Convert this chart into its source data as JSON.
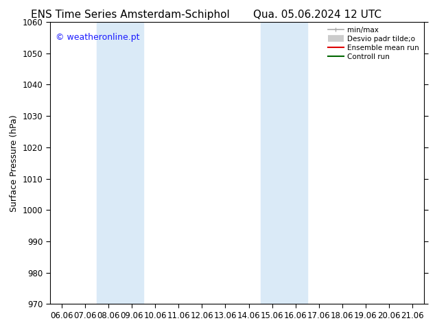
{
  "title_left": "ENS Time Series Amsterdam-Schiphol",
  "title_right": "Qua. 05.06.2024 12 UTC",
  "ylabel": "Surface Pressure (hPa)",
  "ylim": [
    970,
    1060
  ],
  "yticks": [
    970,
    980,
    990,
    1000,
    1010,
    1020,
    1030,
    1040,
    1050,
    1060
  ],
  "xlabels": [
    "06.06",
    "07.06",
    "08.06",
    "09.06",
    "10.06",
    "11.06",
    "12.06",
    "13.06",
    "14.06",
    "15.06",
    "16.06",
    "17.06",
    "18.06",
    "19.06",
    "20.06",
    "21.06"
  ],
  "xvalues": [
    0,
    1,
    2,
    3,
    4,
    5,
    6,
    7,
    8,
    9,
    10,
    11,
    12,
    13,
    14,
    15
  ],
  "shaded_regions": [
    {
      "xmin": 2,
      "xmax": 4,
      "color": "#daeaf7"
    },
    {
      "xmin": 9,
      "xmax": 11,
      "color": "#daeaf7"
    }
  ],
  "watermark": "© weatheronline.pt",
  "watermark_color": "#1a1aff",
  "background_color": "#ffffff",
  "plot_bg_color": "#ffffff",
  "legend_entries": [
    {
      "label": "min/max",
      "color": "#aaaaaa",
      "lw": 1.2
    },
    {
      "label": "Desvio padr tilde;o",
      "color": "#cccccc",
      "lw": 7
    },
    {
      "label": "Ensemble mean run",
      "color": "#dd0000",
      "lw": 1.5
    },
    {
      "label": "Controll run",
      "color": "#006600",
      "lw": 1.5
    }
  ],
  "title_fontsize": 11,
  "tick_fontsize": 8.5,
  "ylabel_fontsize": 9,
  "watermark_fontsize": 9
}
